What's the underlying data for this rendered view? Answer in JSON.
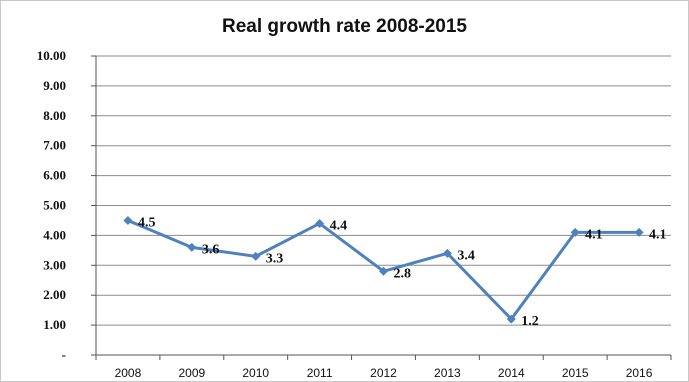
{
  "chart_data": {
    "type": "line",
    "title": "Real growth rate 2008-2015",
    "xlabel": "",
    "ylabel": "",
    "categories": [
      "2008",
      "2009",
      "2010",
      "2011",
      "2012",
      "2013",
      "2014",
      "2015",
      "2016"
    ],
    "series": [
      {
        "values": [
          4.5,
          3.6,
          3.3,
          4.4,
          2.8,
          3.4,
          1.2,
          4.1,
          4.1
        ]
      }
    ],
    "data_labels": [
      "4.5",
      "3.6",
      "3.3",
      "4.4",
      "2.8",
      "3.4",
      "1.2",
      "4.1",
      "4.1"
    ],
    "ylim": [
      0,
      10
    ],
    "yticks": [
      0,
      1,
      2,
      3,
      4,
      5,
      6,
      7,
      8,
      9,
      10
    ],
    "ytick_labels": [
      "-",
      "1.00",
      "2.00",
      "3.00",
      "4.00",
      "5.00",
      "6.00",
      "7.00",
      "8.00",
      "9.00",
      "10.00"
    ],
    "grid": true,
    "legend": "none",
    "line_color": "#4f81bd",
    "grid_color": "#8c8c8c"
  }
}
